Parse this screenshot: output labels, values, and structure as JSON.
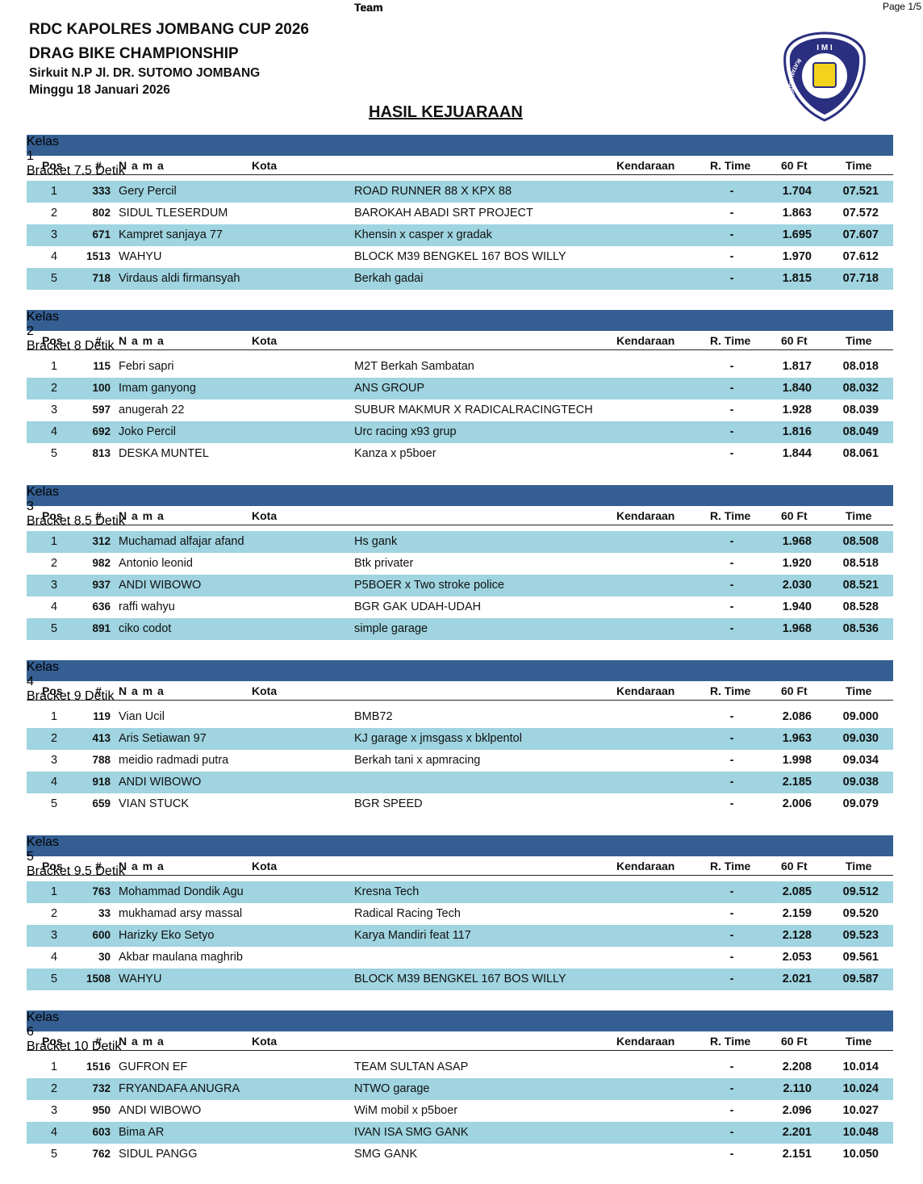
{
  "page_label": "Page 1/5",
  "header": {
    "lines": [
      "RDC KAPOLRES JOMBANG CUP 2026",
      "DRAG BIKE CHAMPIONSHIP",
      "Sirkuit N.P Jl. DR. SUTOMO JOMBANG",
      "Minggu 18 Januari 2026"
    ],
    "heading": "HASIL KEJUARAAN"
  },
  "logo": {
    "top": "I M I",
    "ring": "IKATAN MOTOR INDONESIA"
  },
  "columns": {
    "pos": "Pos",
    "no": "#",
    "nama": "N a m a",
    "kota": "Kota",
    "team": "Team",
    "kendaraan": "Kendaraan",
    "rtime": "R. Time",
    "ft60": "60 Ft",
    "time": "Time"
  },
  "sections": [
    {
      "kelas": "Kelas",
      "number": "1",
      "bracket": "Bracket 7.5 Detik",
      "rows": [
        {
          "pos": "1",
          "no": "333",
          "nama": "Gery Percil",
          "team": "ROAD RUNNER 88 X KPX 88",
          "rtime": "-",
          "ft60": "1.704",
          "time": "07.521"
        },
        {
          "pos": "2",
          "no": "802",
          "nama": "SIDUL TLESERDUM",
          "team": "BAROKAH ABADI SRT PROJECT",
          "rtime": "-",
          "ft60": "1.863",
          "time": "07.572"
        },
        {
          "pos": "3",
          "no": "671",
          "nama": "Kampret sanjaya 77",
          "team": "Khensin x casper x gradak",
          "rtime": "-",
          "ft60": "1.695",
          "time": "07.607"
        },
        {
          "pos": "4",
          "no": "1513",
          "nama": "WAHYU",
          "team": "BLOCK M39 BENGKEL 167 BOS WILLY",
          "rtime": "-",
          "ft60": "1.970",
          "time": "07.612"
        },
        {
          "pos": "5",
          "no": "718",
          "nama": "Virdaus aldi firmansyah",
          "team": "Berkah gadai",
          "rtime": "-",
          "ft60": "1.815",
          "time": "07.718"
        }
      ]
    },
    {
      "kelas": "Kelas",
      "number": "2",
      "bracket": "Bracket 8 Detik",
      "rows": [
        {
          "pos": "1",
          "no": "115",
          "nama": "Febri sapri",
          "team": "M2T Berkah Sambatan",
          "rtime": "-",
          "ft60": "1.817",
          "time": "08.018"
        },
        {
          "pos": "2",
          "no": "100",
          "nama": "Imam ganyong",
          "team": "ANS GROUP",
          "rtime": "-",
          "ft60": "1.840",
          "time": "08.032"
        },
        {
          "pos": "3",
          "no": "597",
          "nama": "anugerah 22",
          "team": "SUBUR MAKMUR X RADICALRACINGTECH",
          "rtime": "-",
          "ft60": "1.928",
          "time": "08.039"
        },
        {
          "pos": "4",
          "no": "692",
          "nama": "Joko Percil",
          "team": "Urc racing x93 grup",
          "rtime": "-",
          "ft60": "1.816",
          "time": "08.049"
        },
        {
          "pos": "5",
          "no": "813",
          "nama": "DESKA MUNTEL",
          "team": "Kanza x p5boer",
          "rtime": "-",
          "ft60": "1.844",
          "time": "08.061"
        }
      ]
    },
    {
      "kelas": "Kelas",
      "number": "3",
      "bracket": "Bracket 8.5 Detik",
      "rows": [
        {
          "pos": "1",
          "no": "312",
          "nama": "Muchamad alfajar afand",
          "team": "Hs gank",
          "rtime": "-",
          "ft60": "1.968",
          "time": "08.508"
        },
        {
          "pos": "2",
          "no": "982",
          "nama": "Antonio leonid",
          "team": "Btk privater",
          "rtime": "-",
          "ft60": "1.920",
          "time": "08.518"
        },
        {
          "pos": "3",
          "no": "937",
          "nama": "ANDI WIBOWO",
          "team": "P5BOER x Two stroke police",
          "rtime": "-",
          "ft60": "2.030",
          "time": "08.521"
        },
        {
          "pos": "4",
          "no": "636",
          "nama": "raffi wahyu",
          "team": "BGR GAK UDAH-UDAH",
          "rtime": "-",
          "ft60": "1.940",
          "time": "08.528"
        },
        {
          "pos": "5",
          "no": "891",
          "nama": "ciko codot",
          "team": "simple garage",
          "rtime": "-",
          "ft60": "1.968",
          "time": "08.536"
        }
      ]
    },
    {
      "kelas": "Kelas",
      "number": "4",
      "bracket": "Bracket 9 Detik",
      "rows": [
        {
          "pos": "1",
          "no": "119",
          "nama": "Vian Ucil",
          "team": "BMB72",
          "rtime": "-",
          "ft60": "2.086",
          "time": "09.000"
        },
        {
          "pos": "2",
          "no": "413",
          "nama": "Aris Setiawan 97",
          "team": "KJ garage x jmsgass x bklpentol",
          "rtime": "-",
          "ft60": "1.963",
          "time": "09.030"
        },
        {
          "pos": "3",
          "no": "788",
          "nama": "meidio radmadi putra",
          "team": "Berkah tani x apmracing",
          "rtime": "-",
          "ft60": "1.998",
          "time": "09.034"
        },
        {
          "pos": "4",
          "no": "918",
          "nama": "ANDI WIBOWO",
          "rtime": "-",
          "ft60": "2.185",
          "time": "09.038"
        },
        {
          "pos": "5",
          "no": "659",
          "nama": "VIAN STUCK",
          "team": "BGR SPEED",
          "rtime": "-",
          "ft60": "2.006",
          "time": "09.079"
        }
      ]
    },
    {
      "kelas": "Kelas",
      "number": "5",
      "bracket": "Bracket 9.5 Detik",
      "rows": [
        {
          "pos": "1",
          "no": "763",
          "nama": "Mohammad Dondik Agu",
          "team": "Kresna Tech",
          "rtime": "-",
          "ft60": "2.085",
          "time": "09.512"
        },
        {
          "pos": "2",
          "no": "33",
          "nama": "mukhamad arsy massal",
          "team": "Radical Racing Tech",
          "rtime": "-",
          "ft60": "2.159",
          "time": "09.520"
        },
        {
          "pos": "3",
          "no": "600",
          "nama": "Harizky Eko Setyo",
          "team": "Karya Mandiri feat 117",
          "rtime": "-",
          "ft60": "2.128",
          "time": "09.523"
        },
        {
          "pos": "4",
          "no": "30",
          "nama": "Akbar maulana maghrib",
          "rtime": "-",
          "ft60": "2.053",
          "time": "09.561"
        },
        {
          "pos": "5",
          "no": "1508",
          "nama": "WAHYU",
          "team": "BLOCK M39 BENGKEL 167 BOS WILLY",
          "rtime": "-",
          "ft60": "2.021",
          "time": "09.587"
        }
      ]
    },
    {
      "kelas": "Kelas",
      "number": "6",
      "bracket": "Bracket 10 Detik",
      "rows": [
        {
          "pos": "1",
          "no": "1516",
          "nama": "GUFRON EF",
          "team": "TEAM SULTAN ASAP",
          "rtime": "-",
          "ft60": "2.208",
          "time": "10.014"
        },
        {
          "pos": "2",
          "no": "732",
          "nama": "FRYANDAFA ANUGRA",
          "team": "NTWO garage",
          "rtime": "-",
          "ft60": "2.110",
          "time": "10.024"
        },
        {
          "pos": "3",
          "no": "950",
          "nama": "ANDI WIBOWO",
          "team": "WiM mobil x p5boer",
          "rtime": "-",
          "ft60": "2.096",
          "time": "10.027"
        },
        {
          "pos": "4",
          "no": "603",
          "nama": "Bima AR",
          "team": "IVAN ISA SMG GANK",
          "rtime": "-",
          "ft60": "2.201",
          "time": "10.048"
        },
        {
          "pos": "5",
          "no": "762",
          "nama": "SIDUL PANGG",
          "team": "SMG GANK",
          "rtime": "-",
          "ft60": "2.151",
          "time": "10.050"
        }
      ]
    }
  ]
}
